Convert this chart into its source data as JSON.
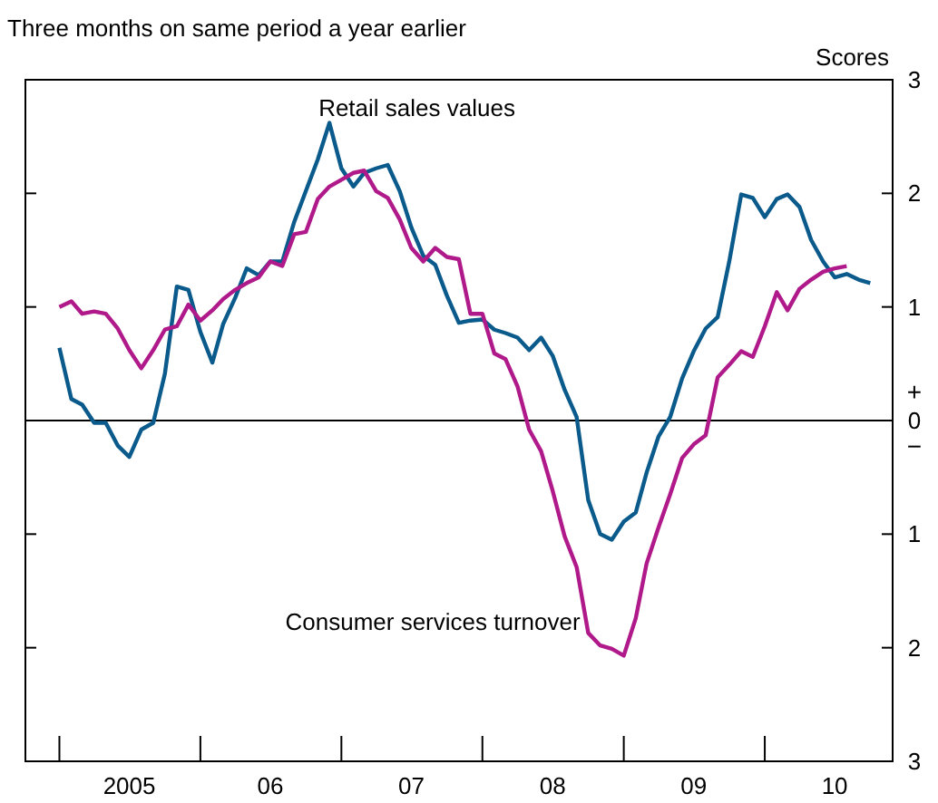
{
  "chart_data": {
    "type": "line",
    "title": "Three months on same period a year earlier",
    "ylabel": "Scores",
    "x": [
      "2005-01",
      "2005-02",
      "2005-03",
      "2005-04",
      "2005-05",
      "2005-06",
      "2005-07",
      "2005-08",
      "2005-09",
      "2005-10",
      "2005-11",
      "2005-12",
      "2006-01",
      "2006-02",
      "2006-03",
      "2006-04",
      "2006-05",
      "2006-06",
      "2006-07",
      "2006-08",
      "2006-09",
      "2006-10",
      "2006-11",
      "2006-12",
      "2007-01",
      "2007-02",
      "2007-03",
      "2007-04",
      "2007-05",
      "2007-06",
      "2007-07",
      "2007-08",
      "2007-09",
      "2007-10",
      "2007-11",
      "2007-12",
      "2008-01",
      "2008-02",
      "2008-03",
      "2008-04",
      "2008-05",
      "2008-06",
      "2008-07",
      "2008-08",
      "2008-09",
      "2008-10",
      "2008-11",
      "2008-12",
      "2009-01",
      "2009-02",
      "2009-03",
      "2009-04",
      "2009-05",
      "2009-06",
      "2009-07",
      "2009-08",
      "2009-09",
      "2009-10",
      "2009-11",
      "2009-12",
      "2010-01",
      "2010-02",
      "2010-03",
      "2010-04",
      "2010-05",
      "2010-06",
      "2010-07",
      "2010-08",
      "2010-09",
      "2010-10"
    ],
    "series": [
      {
        "name": "Retail sales values",
        "color": "#0b5a8c",
        "values": [
          0.64,
          0.19,
          0.14,
          -0.02,
          -0.02,
          -0.22,
          -0.32,
          -0.08,
          -0.02,
          0.41,
          1.18,
          1.15,
          0.78,
          0.51,
          0.85,
          1.08,
          1.34,
          1.28,
          1.4,
          1.4,
          1.75,
          2.02,
          2.3,
          2.62,
          2.22,
          2.06,
          2.18,
          2.22,
          2.25,
          2.02,
          1.7,
          1.45,
          1.37,
          1.1,
          0.86,
          0.88,
          0.89,
          0.8,
          0.77,
          0.73,
          0.62,
          0.73,
          0.57,
          0.27,
          0.03,
          -0.7,
          -1,
          -1.05,
          -0.89,
          -0.81,
          -0.46,
          -0.14,
          0.03,
          0.37,
          0.61,
          0.81,
          0.91,
          1.4,
          1.99,
          1.96,
          1.79,
          1.95,
          1.99,
          1.88,
          1.59,
          1.4,
          1.26,
          1.29,
          1.24,
          1.21
        ]
      },
      {
        "name": "Consumer services turnover",
        "color": "#b0198a",
        "values": [
          1,
          1.05,
          0.94,
          0.96,
          0.94,
          0.81,
          0.62,
          0.46,
          0.62,
          0.8,
          0.83,
          1.02,
          0.88,
          0.97,
          1.07,
          1.15,
          1.21,
          1.26,
          1.4,
          1.36,
          1.64,
          1.66,
          1.95,
          2.06,
          2.12,
          2.18,
          2.2,
          2.02,
          1.96,
          1.77,
          1.52,
          1.4,
          1.52,
          1.44,
          1.42,
          0.94,
          0.94,
          0.59,
          0.54,
          0.3,
          -0.08,
          -0.27,
          -0.62,
          -1.02,
          -1.29,
          -1.87,
          -1.98,
          -2.01,
          -2.07,
          -1.74,
          -1.26,
          -0.94,
          -0.65,
          -0.33,
          -0.21,
          -0.13,
          0.38,
          0.49,
          0.61,
          0.56,
          0.83,
          1.13,
          0.97,
          1.16,
          1.24,
          1.31,
          1.34,
          1.36,
          null,
          null
        ]
      }
    ],
    "xlim": [
      "2004-10-05",
      "2010-11-28"
    ],
    "xticks": [
      {
        "value": "2005-01-01",
        "label": null
      },
      {
        "value": "2005-07-01",
        "label": "2005"
      },
      {
        "value": "2006-01-01",
        "label": null
      },
      {
        "value": "2006-07-01",
        "label": "06"
      },
      {
        "value": "2007-01-01",
        "label": null
      },
      {
        "value": "2007-07-01",
        "label": "07"
      },
      {
        "value": "2008-01-01",
        "label": null
      },
      {
        "value": "2008-07-01",
        "label": "08"
      },
      {
        "value": "2009-01-01",
        "label": null
      },
      {
        "value": "2009-07-01",
        "label": "09"
      },
      {
        "value": "2010-01-01",
        "label": null
      },
      {
        "value": "2010-07-01",
        "label": "10"
      }
    ],
    "ylim": [
      -3,
      3
    ],
    "yticks": [
      3,
      2,
      1,
      0,
      {
        "value": -1,
        "label": "1"
      },
      {
        "value": -2,
        "label": "2"
      },
      {
        "value": -3,
        "label": "3"
      }
    ],
    "ref_lines": [
      {
        "axis": "y",
        "value": 0,
        "color": "#000000"
      }
    ],
    "annotations": [
      "+",
      "−"
    ],
    "grid": false,
    "marker": "none",
    "line_style": "solid"
  }
}
